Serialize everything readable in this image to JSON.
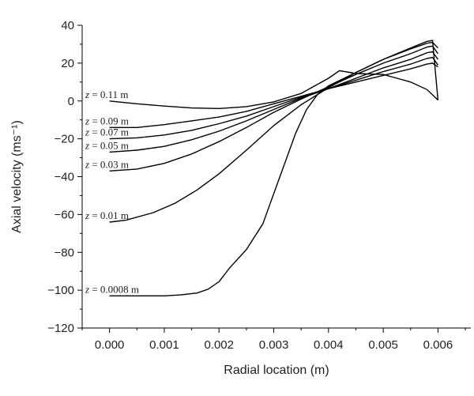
{
  "chart_data": {
    "type": "line",
    "xlabel": "Radial location (m)",
    "ylabel": "Axial velocity (ms⁻¹)",
    "xlim": [
      -0.0005,
      0.0066
    ],
    "ylim": [
      -120,
      40
    ],
    "xticks": [
      "0.000",
      "0.001",
      "0.002",
      "0.003",
      "0.004",
      "0.005",
      "0.006"
    ],
    "xtick_values": [
      0.0,
      0.001,
      0.002,
      0.003,
      0.004,
      0.005,
      0.006
    ],
    "yticks": [
      "40",
      "20",
      "0",
      "−20",
      "−40",
      "−60",
      "−80",
      "−100",
      "−120"
    ],
    "ytick_values": [
      40,
      20,
      0,
      -20,
      -40,
      -60,
      -80,
      -100,
      -120
    ],
    "grid": false,
    "series": [
      {
        "name": "z = 0.11 m",
        "x": [
          0.0,
          0.0005,
          0.001,
          0.0015,
          0.002,
          0.0025,
          0.003,
          0.0035,
          0.004,
          0.0042,
          0.0045,
          0.005,
          0.0055,
          0.0058,
          0.006
        ],
        "y": [
          0.0,
          -1.5,
          -2.7,
          -3.7,
          -4.0,
          -3.0,
          -0.5,
          4.0,
          12.0,
          16.0,
          14.5,
          14.0,
          10.0,
          6.0,
          0.5
        ]
      },
      {
        "name": "z = 0.09 m",
        "x": [
          0.0,
          0.0005,
          0.001,
          0.0015,
          0.002,
          0.0025,
          0.003,
          0.0035,
          0.004,
          0.0045,
          0.005,
          0.0055,
          0.0058,
          0.0059,
          0.006
        ],
        "y": [
          -14.0,
          -14.0,
          -12.5,
          -10.5,
          -8.5,
          -5.5,
          -1.5,
          2.5,
          6.5,
          10.0,
          13.5,
          17.0,
          19.5,
          20.0,
          18.0
        ]
      },
      {
        "name": "z = 0.07 m",
        "x": [
          0.0,
          0.0005,
          0.001,
          0.0015,
          0.002,
          0.0025,
          0.003,
          0.0035,
          0.004,
          0.0045,
          0.005,
          0.0055,
          0.0058,
          0.0059,
          0.006
        ],
        "y": [
          -20.0,
          -19.5,
          -18.0,
          -15.5,
          -12.0,
          -8.0,
          -3.0,
          2.0,
          6.5,
          11.0,
          15.5,
          19.5,
          22.5,
          23.0,
          19.0
        ]
      },
      {
        "name": "z = 0.05 m",
        "x": [
          0.0,
          0.0005,
          0.001,
          0.0015,
          0.002,
          0.0025,
          0.003,
          0.0035,
          0.004,
          0.0045,
          0.005,
          0.0055,
          0.0058,
          0.0059,
          0.006
        ],
        "y": [
          -27.0,
          -26.0,
          -24.0,
          -20.5,
          -16.0,
          -10.5,
          -4.5,
          1.5,
          6.5,
          12.0,
          17.5,
          22.0,
          25.5,
          26.0,
          22.0
        ]
      },
      {
        "name": "z = 0.03 m",
        "x": [
          0.0,
          0.0005,
          0.001,
          0.0015,
          0.002,
          0.0025,
          0.003,
          0.0035,
          0.004,
          0.0045,
          0.005,
          0.0055,
          0.0058,
          0.0059,
          0.006
        ],
        "y": [
          -37.0,
          -36.0,
          -33.0,
          -28.0,
          -21.5,
          -14.0,
          -6.0,
          1.0,
          7.5,
          14.0,
          20.0,
          25.0,
          28.5,
          29.0,
          25.0
        ]
      },
      {
        "name": "z = 0.01 m",
        "x": [
          0.0,
          0.0003,
          0.0008,
          0.0012,
          0.0016,
          0.002,
          0.0025,
          0.003,
          0.0035,
          0.004,
          0.0045,
          0.005,
          0.0055,
          0.0058,
          0.0059,
          0.006
        ],
        "y": [
          -64.0,
          -63.0,
          -59.0,
          -54.0,
          -47.0,
          -38.5,
          -26.0,
          -13.0,
          -2.0,
          7.0,
          15.0,
          22.0,
          27.5,
          30.5,
          31.0,
          28.0
        ]
      },
      {
        "name": "z = 0.0008 m",
        "x": [
          0.0,
          0.0005,
          0.001,
          0.0013,
          0.0016,
          0.0018,
          0.002,
          0.0022,
          0.0025,
          0.0028,
          0.003,
          0.0032,
          0.0034,
          0.0036,
          0.0038,
          0.004,
          0.0045,
          0.005,
          0.0055,
          0.0058,
          0.0059,
          0.006
        ],
        "y": [
          -103.0,
          -103.0,
          -103.0,
          -102.5,
          -101.5,
          -99.5,
          -95.5,
          -88.0,
          -78.5,
          -65.0,
          -49.0,
          -33.0,
          -17.0,
          -4.5,
          3.5,
          8.0,
          15.0,
          22.0,
          28.0,
          31.5,
          32.0,
          0.5
        ]
      }
    ]
  }
}
